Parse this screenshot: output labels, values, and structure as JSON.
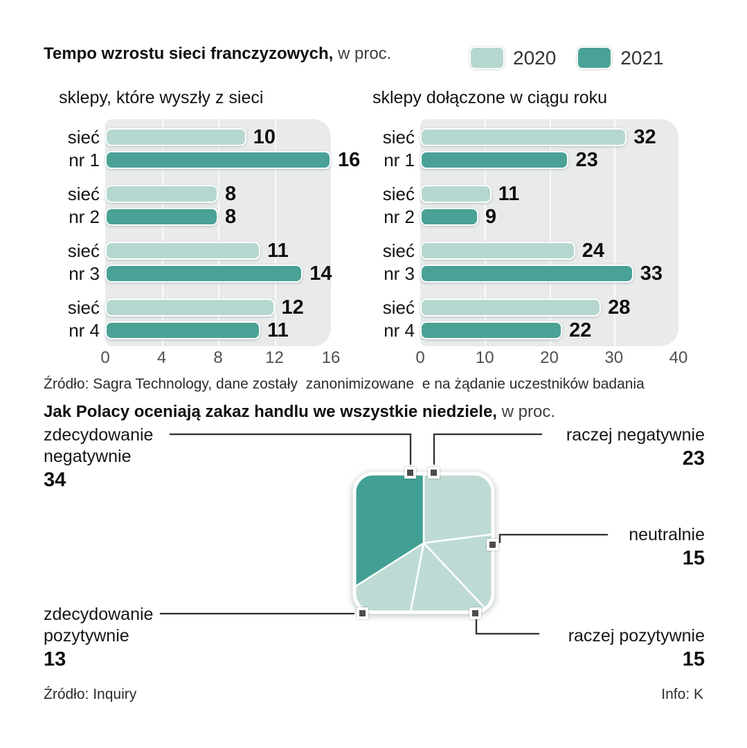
{
  "section1": {
    "title": "Tempo wzrostu sieci franczyzowych,",
    "title_suffix": " w proc.",
    "legend": [
      {
        "label": "2020",
        "color": "#b5d7cf"
      },
      {
        "label": "2021",
        "color": "#4aa296"
      }
    ],
    "source": "Źródło: Sagra Technology, dane zostały  zanonimizowane  e na żądanie uczestników badania"
  },
  "section2": {
    "title": "Jak Polacy oceniają zakaz handlu we wszystkie niedziele,",
    "title_suffix": " w proc.",
    "callouts": [
      {
        "label": "raczej negatywnie",
        "value": "23"
      },
      {
        "label": "neutralnie",
        "value": "15"
      },
      {
        "label": "raczej pozytywnie",
        "value": "15"
      },
      {
        "label": "zdecydowanie pozytywnie",
        "value": "13"
      },
      {
        "label": "zdecydowanie negatywnie",
        "value": "34"
      }
    ],
    "source_left": "Źródło: Inquiry",
    "source_right": "Info: K"
  },
  "chart_data": [
    {
      "type": "bar",
      "orientation": "horizontal",
      "title": "sklepy, które wyszły z sieci",
      "categories": [
        "sieć nr 1",
        "sieć nr 2",
        "sieć nr 3",
        "sieć nr 4"
      ],
      "series": [
        {
          "name": "2020",
          "color": "#b5d7cf",
          "values": [
            10,
            8,
            11,
            12
          ]
        },
        {
          "name": "2021",
          "color": "#4aa296",
          "values": [
            16,
            8,
            14,
            11
          ]
        }
      ],
      "xlim": [
        0,
        16
      ],
      "xticks": [
        0,
        4,
        8,
        12,
        16
      ],
      "grid": true,
      "value_labels": true,
      "legend_position": "top-right"
    },
    {
      "type": "bar",
      "orientation": "horizontal",
      "title": "sklepy dołączone w ciągu roku",
      "categories": [
        "sieć nr 1",
        "sieć nr 2",
        "sieć nr 3",
        "sieć nr 4"
      ],
      "series": [
        {
          "name": "2020",
          "color": "#b5d7cf",
          "values": [
            32,
            11,
            24,
            28
          ]
        },
        {
          "name": "2021",
          "color": "#4aa296",
          "values": [
            23,
            9,
            33,
            22
          ]
        }
      ],
      "xlim": [
        0,
        40
      ],
      "xticks": [
        0,
        10,
        20,
        30,
        40
      ],
      "grid": true,
      "value_labels": true,
      "legend_position": "top-right"
    },
    {
      "type": "pie",
      "shape": "rounded-square",
      "title": "Jak Polacy oceniają zakaz handlu we wszystkie niedziele, w proc.",
      "start_angle_deg": 0,
      "direction": "clockwise",
      "labels": [
        "raczej negatywnie",
        "neutralnie",
        "raczej pozytywnie",
        "zdecydowanie pozytywnie",
        "zdecydowanie negatywnie"
      ],
      "values": [
        23,
        15,
        15,
        13,
        34
      ],
      "colors": [
        "#bedad4",
        "#bedad4",
        "#bedad4",
        "#bedad4",
        "#41a093"
      ]
    }
  ]
}
